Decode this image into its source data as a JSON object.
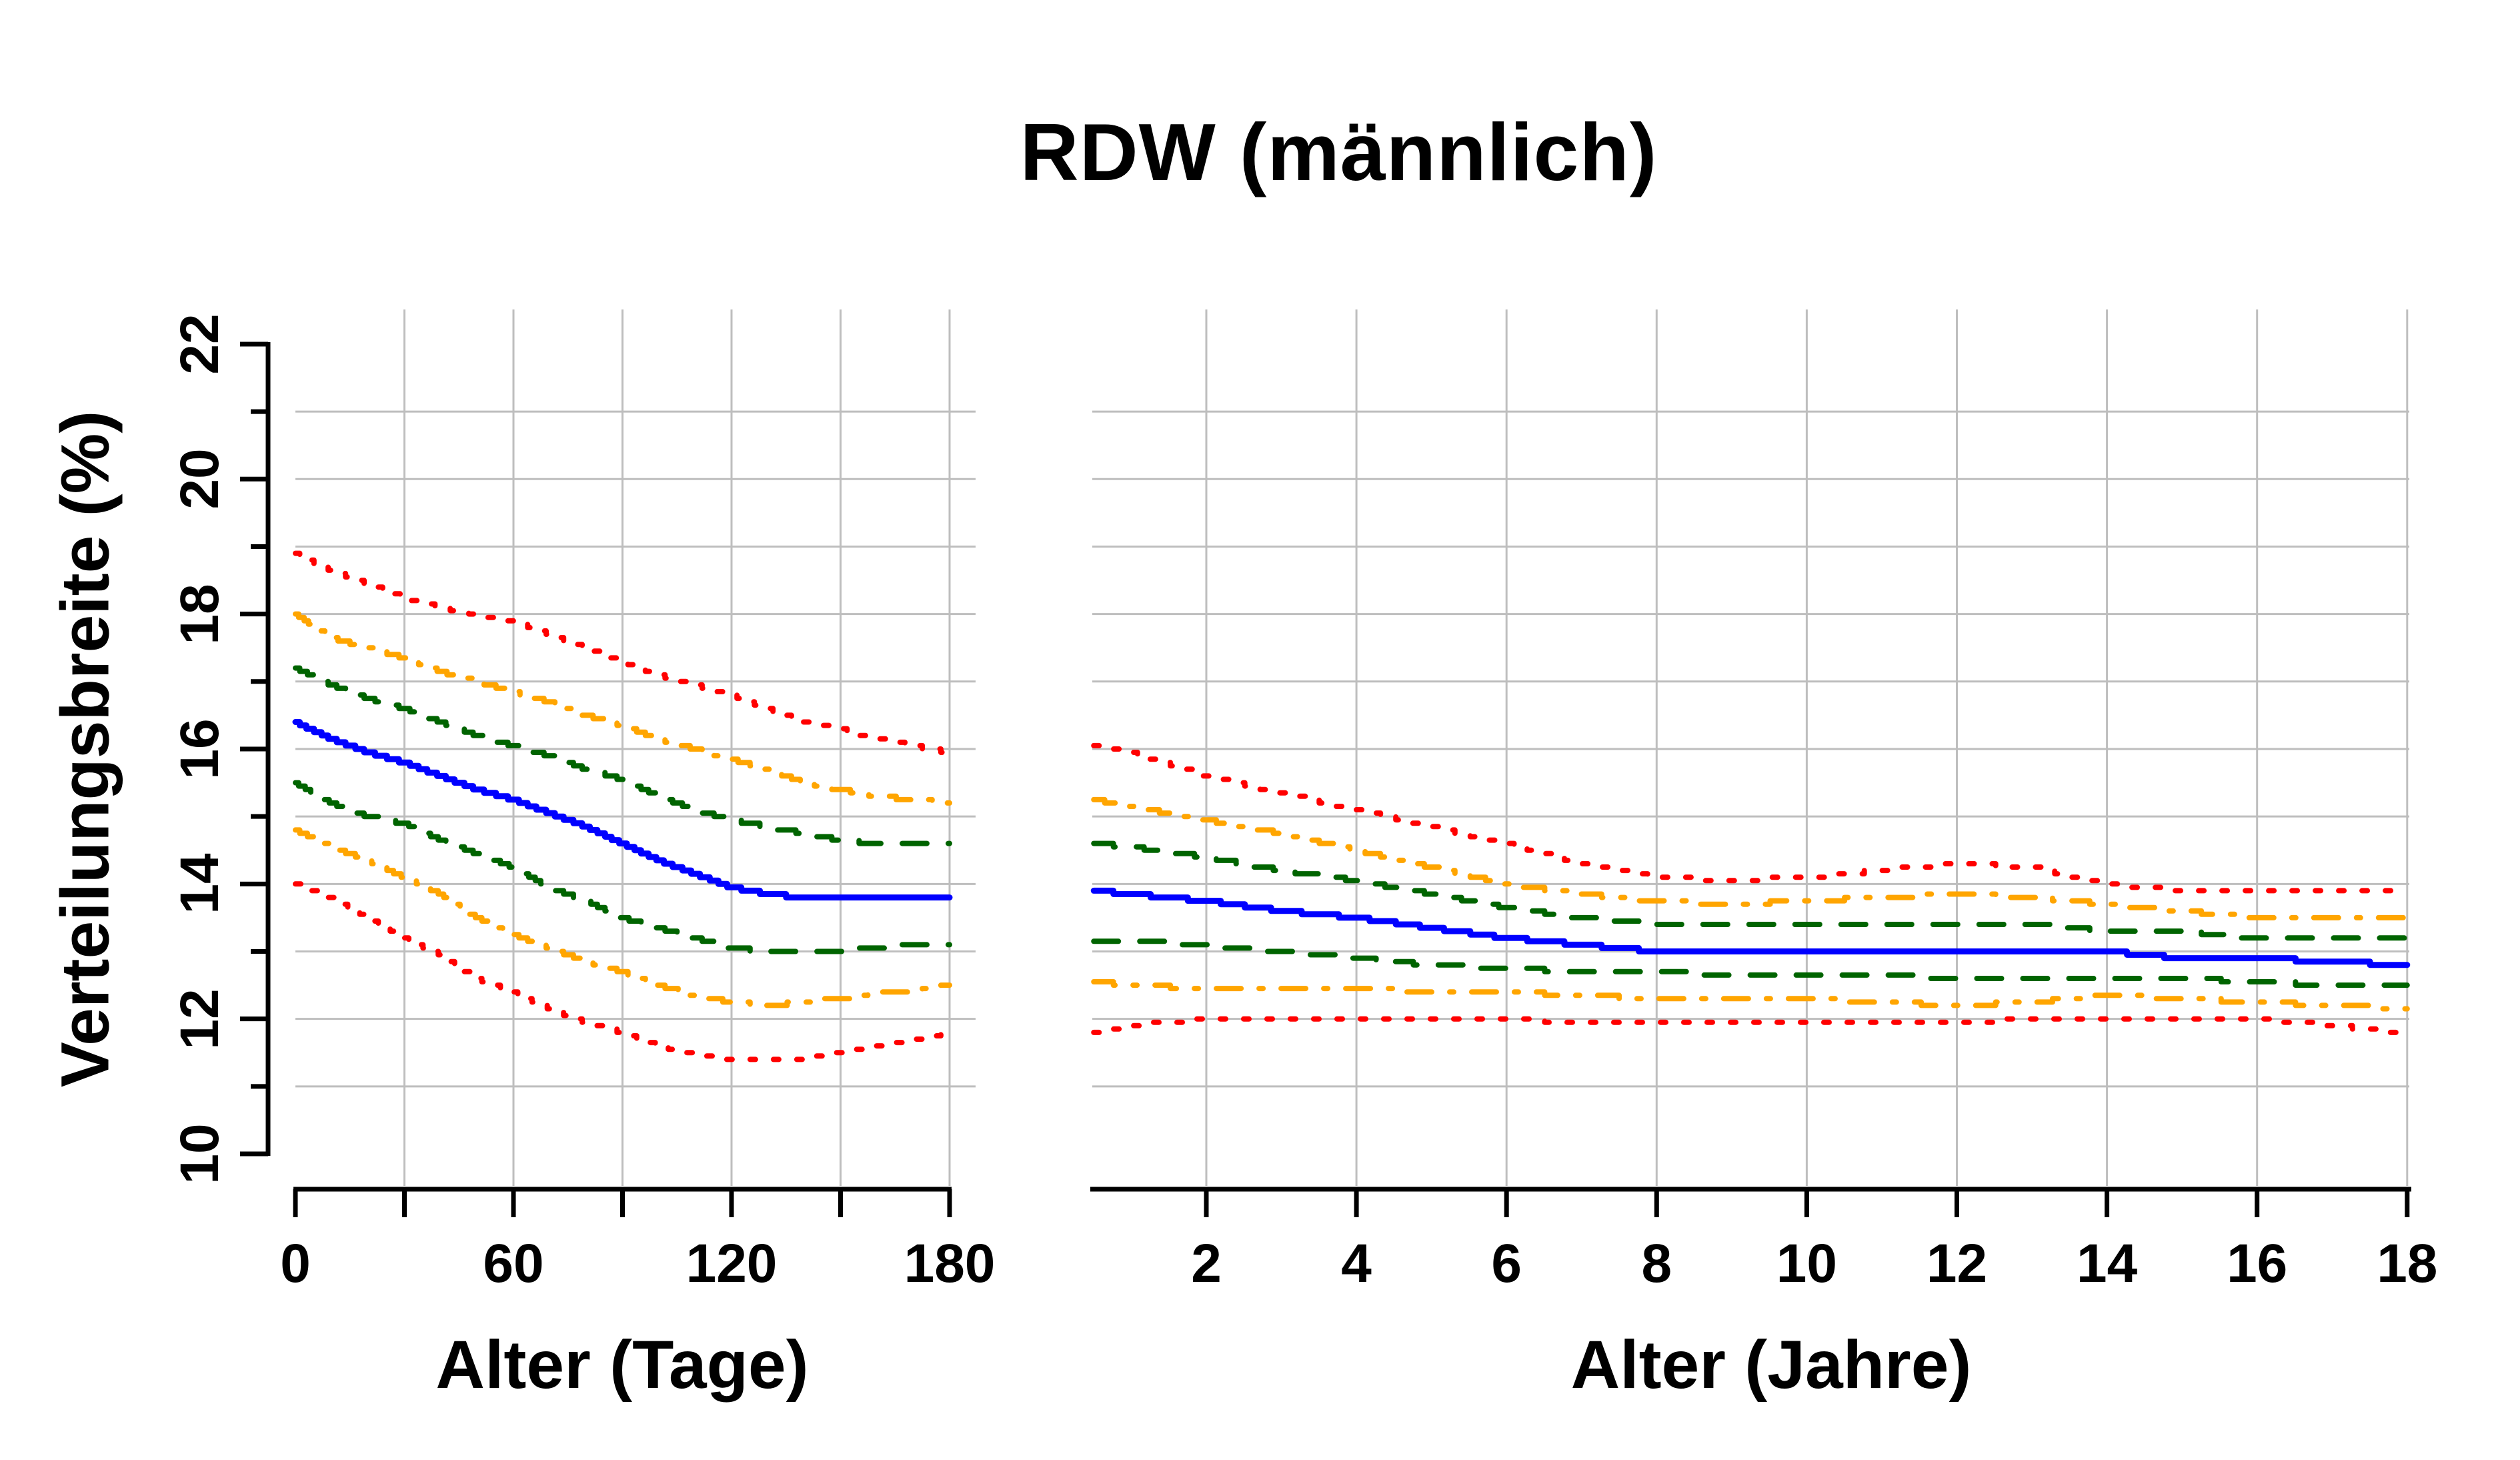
{
  "title": "RDW (männlich)",
  "y_axis": {
    "label": "Verteilungsbreite (%)",
    "tick_values": [
      10,
      11,
      12,
      13,
      14,
      15,
      16,
      17,
      18,
      19,
      20,
      21,
      22
    ],
    "labeled_ticks": [
      10,
      12,
      14,
      16,
      18,
      20,
      22
    ],
    "range": [
      10,
      22
    ]
  },
  "colors": {
    "red": "#ff0000",
    "orange": "#ffa500",
    "green": "#006400",
    "blue": "#0000ff",
    "grid": "#bebebe",
    "axis": "#000000"
  },
  "chart_data": [
    {
      "type": "line",
      "panel": "left",
      "xlabel": "Alter (Tage)",
      "ylabel": "Verteilungsbreite (%)",
      "x_range": [
        0,
        180
      ],
      "ylim": [
        10,
        22
      ],
      "x_ticks": [
        0,
        30,
        60,
        90,
        120,
        150,
        180
      ],
      "x_tick_labels": [
        "0",
        "",
        "60",
        "",
        "120",
        "",
        "180"
      ],
      "grid_x": [
        30,
        60,
        90,
        120,
        150,
        180
      ],
      "grid_y": [
        11,
        12,
        13,
        14,
        15,
        16,
        17,
        18,
        19,
        20,
        21
      ],
      "x": [
        0,
        10,
        20,
        30,
        40,
        50,
        60,
        70,
        80,
        90,
        100,
        110,
        120,
        130,
        140,
        150,
        160,
        170,
        180
      ],
      "series": [
        {
          "name": "upper-red-dotted",
          "color": "red",
          "style": "dotted",
          "values": [
            18.9,
            18.65,
            18.45,
            18.25,
            18.1,
            18.0,
            17.9,
            17.7,
            17.5,
            17.3,
            17.1,
            16.95,
            16.8,
            16.6,
            16.4,
            16.3,
            16.15,
            16.05,
            15.95
          ]
        },
        {
          "name": "upper-orange-dashdot",
          "color": "orange",
          "style": "dashdot",
          "values": [
            18.0,
            17.65,
            17.5,
            17.35,
            17.15,
            17.0,
            16.85,
            16.7,
            16.5,
            16.35,
            16.15,
            16.0,
            15.85,
            15.7,
            15.5,
            15.4,
            15.3,
            15.25,
            15.2
          ]
        },
        {
          "name": "upper-green-dashed",
          "color": "green",
          "style": "dashed",
          "values": [
            17.2,
            16.95,
            16.75,
            16.6,
            16.4,
            16.2,
            16.05,
            15.9,
            15.7,
            15.55,
            15.3,
            15.1,
            14.95,
            14.85,
            14.75,
            14.65,
            14.6,
            14.6,
            14.6
          ]
        },
        {
          "name": "median-blue-solid",
          "color": "blue",
          "style": "solid",
          "values": [
            16.4,
            16.15,
            15.95,
            15.8,
            15.6,
            15.4,
            15.25,
            15.05,
            14.85,
            14.6,
            14.35,
            14.15,
            13.95,
            13.85,
            13.8,
            13.8,
            13.8,
            13.8,
            13.8
          ]
        },
        {
          "name": "lower-green-dashed",
          "color": "green",
          "style": "dashed",
          "values": [
            15.5,
            15.2,
            15.0,
            14.9,
            14.65,
            14.45,
            14.25,
            13.95,
            13.75,
            13.5,
            13.35,
            13.2,
            13.05,
            13.0,
            13.0,
            13.0,
            13.05,
            13.1,
            13.1
          ]
        },
        {
          "name": "lower-orange-dashdot",
          "color": "orange",
          "style": "dashdot",
          "values": [
            14.8,
            14.55,
            14.35,
            14.1,
            13.85,
            13.5,
            13.25,
            13.05,
            12.85,
            12.7,
            12.5,
            12.35,
            12.25,
            12.2,
            12.25,
            12.3,
            12.4,
            12.4,
            12.5
          ]
        },
        {
          "name": "lower-red-dotted",
          "color": "red",
          "style": "dotted",
          "values": [
            14.0,
            13.8,
            13.5,
            13.2,
            12.95,
            12.6,
            12.4,
            12.15,
            11.95,
            11.8,
            11.6,
            11.5,
            11.4,
            11.4,
            11.4,
            11.5,
            11.6,
            11.7,
            11.8
          ]
        }
      ]
    },
    {
      "type": "line",
      "panel": "right",
      "xlabel": "Alter (Jahre)",
      "ylabel": "Verteilungsbreite (%)",
      "x_range": [
        0.5,
        18
      ],
      "ylim": [
        10,
        22
      ],
      "x_ticks": [
        2,
        4,
        6,
        8,
        10,
        12,
        14,
        16,
        18
      ],
      "x_tick_labels": [
        "2",
        "4",
        "6",
        "8",
        "10",
        "12",
        "14",
        "16",
        "18"
      ],
      "grid_x": [
        2,
        4,
        6,
        8,
        10,
        12,
        14,
        16,
        18
      ],
      "grid_y": [
        11,
        12,
        13,
        14,
        15,
        16,
        17,
        18,
        19,
        20,
        21
      ],
      "x": [
        0.5,
        1,
        2,
        3,
        4,
        5,
        6,
        7,
        8,
        9,
        10,
        11,
        12,
        13,
        14,
        15,
        16,
        17,
        18
      ],
      "series": [
        {
          "name": "upper-red-dotted",
          "color": "red",
          "style": "dotted",
          "values": [
            16.05,
            15.95,
            15.6,
            15.35,
            15.1,
            14.85,
            14.6,
            14.3,
            14.1,
            14.05,
            14.1,
            14.2,
            14.3,
            14.25,
            14.0,
            13.9,
            13.9,
            13.9,
            13.9
          ]
        },
        {
          "name": "upper-orange-dashdot",
          "color": "orange",
          "style": "dashdot",
          "values": [
            15.25,
            15.15,
            14.95,
            14.75,
            14.5,
            14.25,
            14.0,
            13.85,
            13.75,
            13.7,
            13.75,
            13.8,
            13.85,
            13.8,
            13.7,
            13.6,
            13.5,
            13.5,
            13.5
          ]
        },
        {
          "name": "upper-green-dashed",
          "color": "green",
          "style": "dashed",
          "values": [
            14.6,
            14.55,
            14.4,
            14.2,
            14.05,
            13.85,
            13.65,
            13.5,
            13.4,
            13.4,
            13.4,
            13.4,
            13.4,
            13.4,
            13.3,
            13.3,
            13.2,
            13.2,
            13.2
          ]
        },
        {
          "name": "median-blue-solid",
          "color": "blue",
          "style": "solid",
          "values": [
            13.9,
            13.85,
            13.75,
            13.6,
            13.5,
            13.35,
            13.2,
            13.1,
            13.0,
            13.0,
            13.0,
            13.0,
            13.0,
            13.0,
            13.0,
            12.9,
            12.9,
            12.85,
            12.8
          ]
        },
        {
          "name": "lower-green-dashed",
          "color": "green",
          "style": "dashed",
          "values": [
            13.15,
            13.15,
            13.1,
            13.0,
            12.9,
            12.8,
            12.75,
            12.7,
            12.7,
            12.65,
            12.65,
            12.65,
            12.6,
            12.6,
            12.6,
            12.6,
            12.55,
            12.5,
            12.5
          ]
        },
        {
          "name": "lower-orange-dashdot",
          "color": "orange",
          "style": "dashdot",
          "values": [
            12.55,
            12.5,
            12.45,
            12.45,
            12.45,
            12.4,
            12.4,
            12.35,
            12.3,
            12.3,
            12.3,
            12.25,
            12.2,
            12.25,
            12.35,
            12.3,
            12.25,
            12.2,
            12.15
          ]
        },
        {
          "name": "lower-red-dotted",
          "color": "red",
          "style": "dotted",
          "values": [
            11.8,
            11.9,
            12.0,
            12.0,
            12.0,
            12.0,
            12.0,
            11.95,
            11.95,
            11.95,
            11.95,
            11.95,
            11.95,
            12.0,
            12.0,
            12.0,
            12.0,
            11.9,
            11.8
          ]
        }
      ]
    }
  ]
}
